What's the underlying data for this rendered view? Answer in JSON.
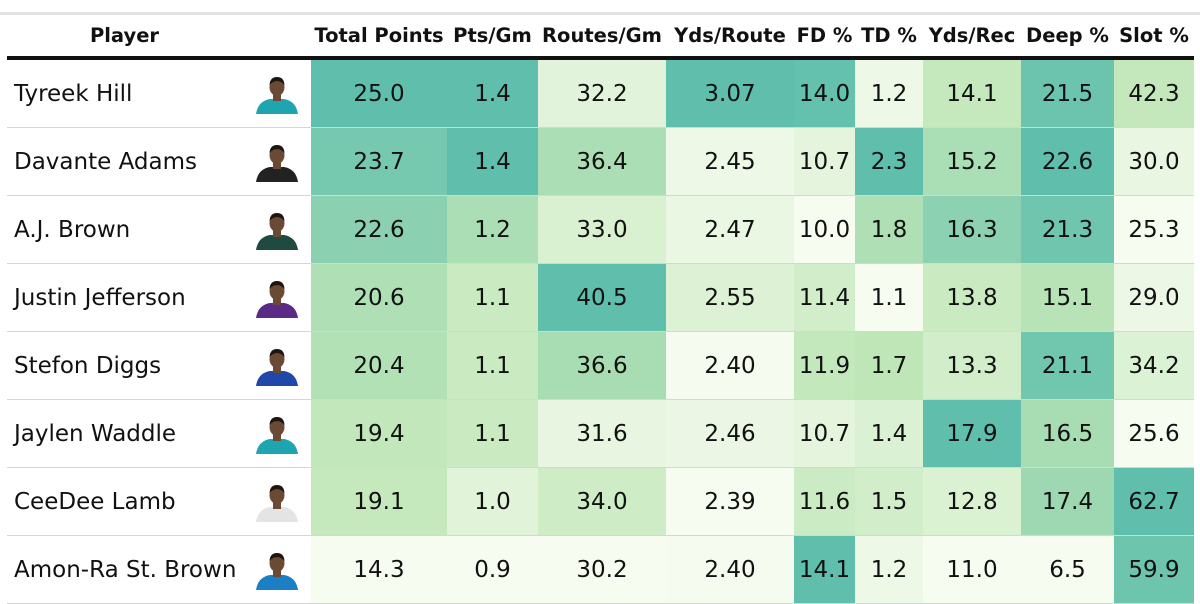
{
  "colors": {
    "low": "#f7fcf0",
    "mid": "#bfe6b7",
    "high": "#5fbfac"
  },
  "chart_data": {
    "type": "table",
    "title": "",
    "columns": [
      "Player",
      "",
      "Total Points",
      "Pts/Gm",
      "Routes/Gm",
      "Yds/Route",
      "FD %",
      "TD %",
      "Yds/Rec",
      "Deep %",
      "Slot %"
    ],
    "rows": [
      {
        "player": "Tyreek Hill",
        "icon": "player-headshot-icon",
        "jersey": "#1fa5b0",
        "values": [
          25.0,
          1.4,
          32.2,
          3.07,
          14.0,
          1.2,
          14.1,
          21.5,
          42.3
        ]
      },
      {
        "player": "Davante Adams",
        "icon": "player-headshot-icon",
        "jersey": "#222222",
        "values": [
          23.7,
          1.4,
          36.4,
          2.45,
          10.7,
          2.3,
          15.2,
          22.6,
          30.0
        ]
      },
      {
        "player": "A.J. Brown",
        "icon": "player-headshot-icon",
        "jersey": "#1f4a3f",
        "values": [
          22.6,
          1.2,
          33.0,
          2.47,
          10.0,
          1.8,
          16.3,
          21.3,
          25.3
        ]
      },
      {
        "player": "Justin Jefferson",
        "icon": "player-headshot-icon",
        "jersey": "#5b2a86",
        "values": [
          20.6,
          1.1,
          40.5,
          2.55,
          11.4,
          1.1,
          13.8,
          15.1,
          29.0
        ]
      },
      {
        "player": "Stefon Diggs",
        "icon": "player-headshot-icon",
        "jersey": "#1f48a8",
        "values": [
          20.4,
          1.1,
          36.6,
          2.4,
          11.9,
          1.7,
          13.3,
          21.1,
          34.2
        ]
      },
      {
        "player": "Jaylen Waddle",
        "icon": "player-headshot-icon",
        "jersey": "#1fa5b0",
        "values": [
          19.4,
          1.1,
          31.6,
          2.46,
          10.7,
          1.4,
          17.9,
          16.5,
          25.6
        ]
      },
      {
        "player": "CeeDee Lamb",
        "icon": "player-headshot-icon",
        "jersey": "#e4e4e4",
        "values": [
          19.1,
          1.0,
          34.0,
          2.39,
          11.6,
          1.5,
          12.8,
          17.4,
          62.7
        ]
      },
      {
        "player": "Amon-Ra St. Brown",
        "icon": "player-headshot-icon",
        "jersey": "#1a7fc4",
        "values": [
          14.3,
          0.9,
          30.2,
          2.4,
          14.1,
          1.2,
          11.0,
          6.5,
          59.9
        ]
      }
    ]
  }
}
